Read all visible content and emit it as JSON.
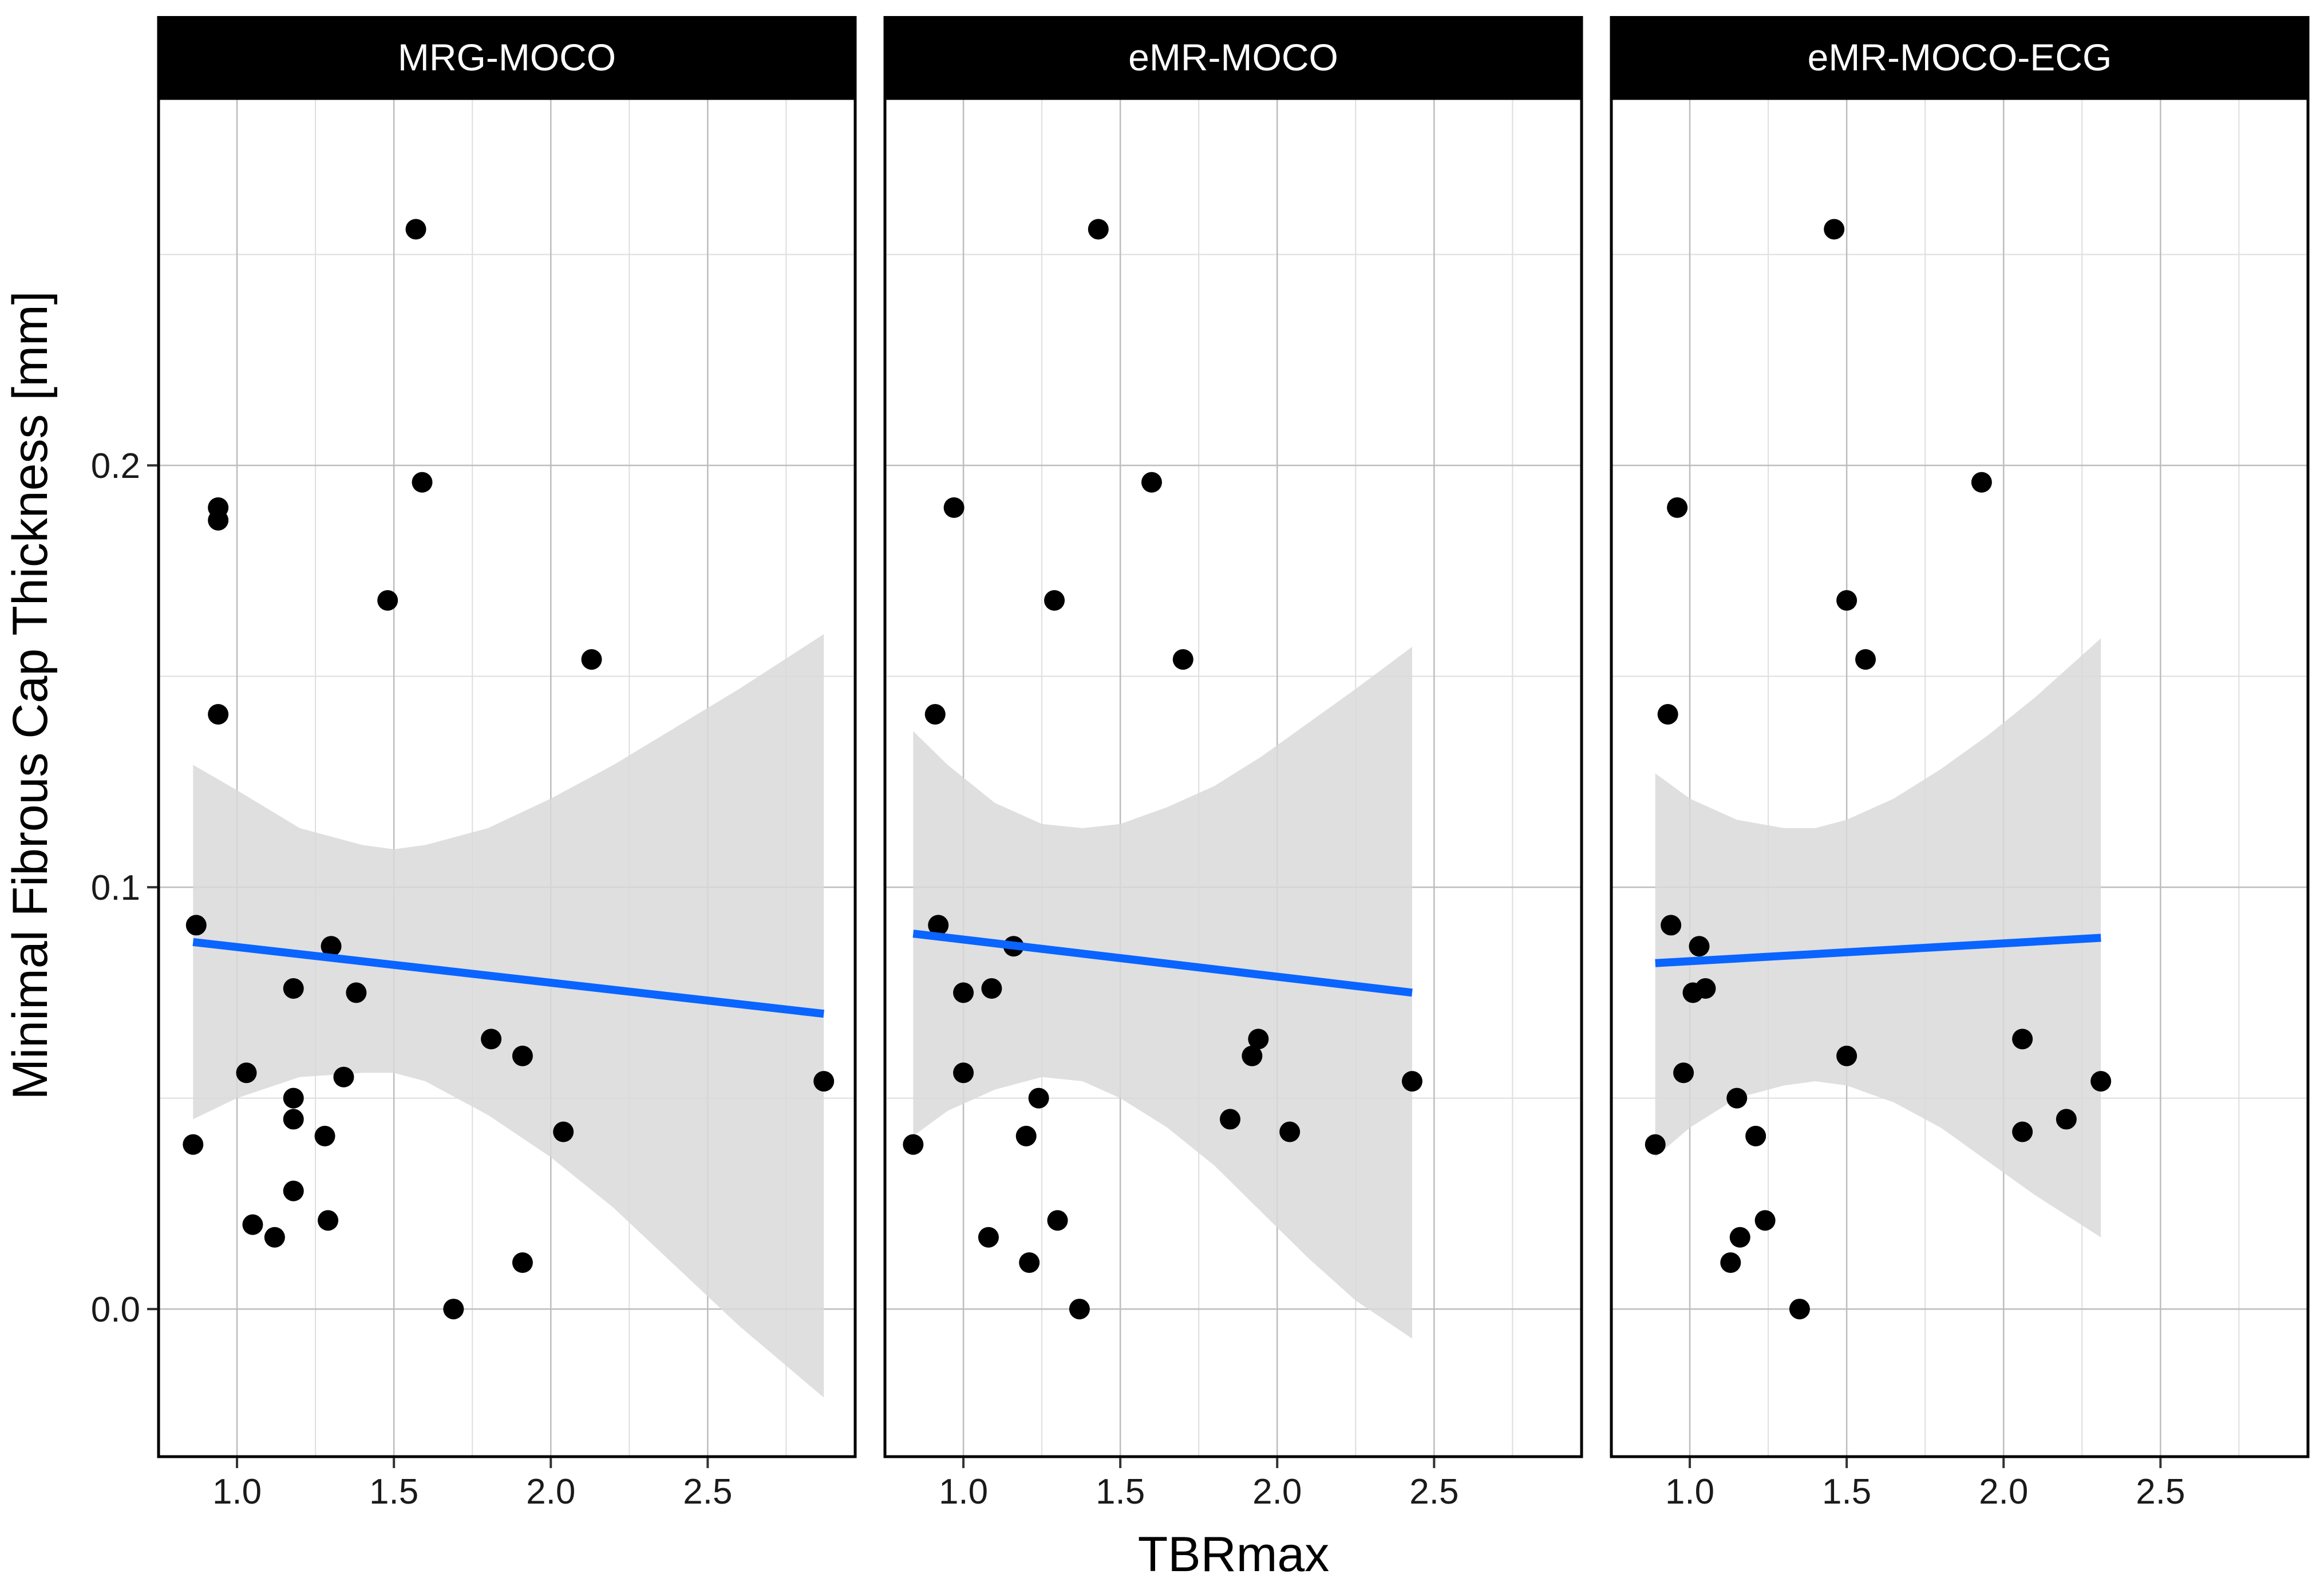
{
  "chart_data": {
    "type": "scatter",
    "xlabel": "TBRmax",
    "ylabel": "Minimal Fibrous Cap Thickness [mm]",
    "xlim": [
      0.75,
      2.97
    ],
    "ylim": [
      -0.035,
      0.287
    ],
    "x_ticks": [
      "1.0",
      "1.5",
      "2.0",
      "2.5"
    ],
    "y_ticks": [
      "0.0",
      "0.1",
      "0.2"
    ],
    "grid": true,
    "colors": {
      "points": "#000000",
      "fit_line": "#0a64ff",
      "ribbon": "#d9d9d9",
      "strip": "#000000"
    },
    "panels": [
      {
        "name": "MRG-MOCO",
        "points": [
          {
            "x": 0.87,
            "y": 0.091
          },
          {
            "x": 0.94,
            "y": 0.19
          },
          {
            "x": 0.94,
            "y": 0.187
          },
          {
            "x": 0.94,
            "y": 0.141
          },
          {
            "x": 0.86,
            "y": 0.039
          },
          {
            "x": 1.03,
            "y": 0.056
          },
          {
            "x": 1.05,
            "y": 0.02
          },
          {
            "x": 1.12,
            "y": 0.017
          },
          {
            "x": 1.18,
            "y": 0.076
          },
          {
            "x": 1.18,
            "y": 0.05
          },
          {
            "x": 1.18,
            "y": 0.045
          },
          {
            "x": 1.18,
            "y": 0.028
          },
          {
            "x": 1.28,
            "y": 0.041
          },
          {
            "x": 1.29,
            "y": 0.021
          },
          {
            "x": 1.3,
            "y": 0.086
          },
          {
            "x": 1.34,
            "y": 0.055
          },
          {
            "x": 1.38,
            "y": 0.075
          },
          {
            "x": 1.48,
            "y": 0.168
          },
          {
            "x": 1.57,
            "y": 0.256
          },
          {
            "x": 1.59,
            "y": 0.196
          },
          {
            "x": 1.69,
            "y": 0.0
          },
          {
            "x": 1.81,
            "y": 0.064
          },
          {
            "x": 1.91,
            "y": 0.06
          },
          {
            "x": 1.91,
            "y": 0.011
          },
          {
            "x": 2.04,
            "y": 0.042
          },
          {
            "x": 2.13,
            "y": 0.154
          },
          {
            "x": 2.87,
            "y": 0.054
          }
        ],
        "fit": {
          "x0": 0.86,
          "y0": 0.087,
          "x1": 2.87,
          "y1": 0.07
        },
        "ribbon": {
          "x": [
            0.86,
            1.0,
            1.2,
            1.4,
            1.5,
            1.6,
            1.8,
            2.0,
            2.2,
            2.4,
            2.6,
            2.87
          ],
          "upper": [
            0.129,
            0.123,
            0.114,
            0.11,
            0.109,
            0.11,
            0.114,
            0.121,
            0.129,
            0.138,
            0.147,
            0.16
          ],
          "lower": [
            0.045,
            0.05,
            0.055,
            0.056,
            0.056,
            0.054,
            0.046,
            0.036,
            0.024,
            0.01,
            -0.004,
            -0.021
          ]
        }
      },
      {
        "name": "eMR-MOCO",
        "points": [
          {
            "x": 0.84,
            "y": 0.039
          },
          {
            "x": 0.91,
            "y": 0.141
          },
          {
            "x": 0.92,
            "y": 0.091
          },
          {
            "x": 0.97,
            "y": 0.19
          },
          {
            "x": 1.0,
            "y": 0.075
          },
          {
            "x": 1.0,
            "y": 0.056
          },
          {
            "x": 1.08,
            "y": 0.017
          },
          {
            "x": 1.09,
            "y": 0.076
          },
          {
            "x": 1.16,
            "y": 0.086
          },
          {
            "x": 1.2,
            "y": 0.041
          },
          {
            "x": 1.21,
            "y": 0.011
          },
          {
            "x": 1.24,
            "y": 0.05
          },
          {
            "x": 1.29,
            "y": 0.168
          },
          {
            "x": 1.3,
            "y": 0.021
          },
          {
            "x": 1.37,
            "y": 0.0
          },
          {
            "x": 1.43,
            "y": 0.256
          },
          {
            "x": 1.6,
            "y": 0.196
          },
          {
            "x": 1.7,
            "y": 0.154
          },
          {
            "x": 1.85,
            "y": 0.045
          },
          {
            "x": 1.92,
            "y": 0.06
          },
          {
            "x": 1.94,
            "y": 0.064
          },
          {
            "x": 2.04,
            "y": 0.042
          },
          {
            "x": 2.43,
            "y": 0.054
          }
        ],
        "fit": {
          "x0": 0.84,
          "y0": 0.089,
          "x1": 2.43,
          "y1": 0.075
        },
        "ribbon": {
          "x": [
            0.84,
            0.95,
            1.1,
            1.25,
            1.38,
            1.5,
            1.65,
            1.8,
            1.95,
            2.1,
            2.25,
            2.43
          ],
          "upper": [
            0.137,
            0.129,
            0.12,
            0.115,
            0.114,
            0.115,
            0.119,
            0.124,
            0.131,
            0.139,
            0.147,
            0.157
          ],
          "lower": [
            0.041,
            0.047,
            0.052,
            0.055,
            0.054,
            0.05,
            0.043,
            0.034,
            0.023,
            0.012,
            0.002,
            -0.007
          ]
        }
      },
      {
        "name": "eMR-MOCO-ECG",
        "points": [
          {
            "x": 0.89,
            "y": 0.039
          },
          {
            "x": 0.93,
            "y": 0.141
          },
          {
            "x": 0.94,
            "y": 0.091
          },
          {
            "x": 0.96,
            "y": 0.19
          },
          {
            "x": 0.98,
            "y": 0.056
          },
          {
            "x": 1.01,
            "y": 0.075
          },
          {
            "x": 1.03,
            "y": 0.086
          },
          {
            "x": 1.05,
            "y": 0.076
          },
          {
            "x": 1.13,
            "y": 0.011
          },
          {
            "x": 1.15,
            "y": 0.05
          },
          {
            "x": 1.16,
            "y": 0.017
          },
          {
            "x": 1.21,
            "y": 0.041
          },
          {
            "x": 1.24,
            "y": 0.021
          },
          {
            "x": 1.35,
            "y": 0.0
          },
          {
            "x": 1.46,
            "y": 0.256
          },
          {
            "x": 1.5,
            "y": 0.168
          },
          {
            "x": 1.5,
            "y": 0.06
          },
          {
            "x": 1.56,
            "y": 0.154
          },
          {
            "x": 1.93,
            "y": 0.196
          },
          {
            "x": 2.06,
            "y": 0.064
          },
          {
            "x": 2.06,
            "y": 0.042
          },
          {
            "x": 2.2,
            "y": 0.045
          },
          {
            "x": 2.31,
            "y": 0.054
          }
        ],
        "fit": {
          "x0": 0.89,
          "y0": 0.082,
          "x1": 2.31,
          "y1": 0.088
        },
        "ribbon": {
          "x": [
            0.89,
            1.0,
            1.15,
            1.3,
            1.4,
            1.5,
            1.65,
            1.8,
            1.95,
            2.1,
            2.31
          ],
          "upper": [
            0.127,
            0.121,
            0.116,
            0.114,
            0.114,
            0.116,
            0.121,
            0.128,
            0.136,
            0.145,
            0.159
          ],
          "lower": [
            0.036,
            0.043,
            0.05,
            0.053,
            0.054,
            0.053,
            0.049,
            0.043,
            0.035,
            0.027,
            0.017
          ]
        }
      }
    ]
  }
}
